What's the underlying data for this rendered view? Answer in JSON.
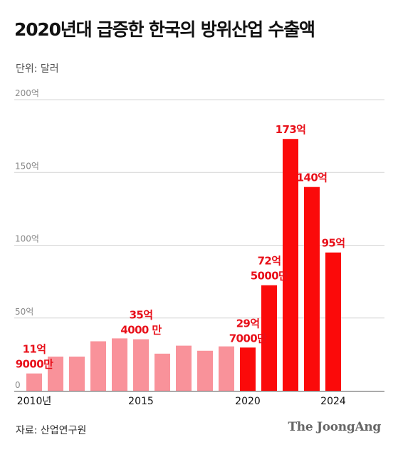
{
  "header": {
    "title": "2020년대 급증한 한국의 방위산업 수출액",
    "unit": "단위: 달러"
  },
  "footer": {
    "source": "자료: 산업연구원",
    "brand": "The JoongAng"
  },
  "colors": {
    "before_2020": "#f9929a",
    "from_2020": "#fb0a0a",
    "label": "#e8101a"
  },
  "chart_data": {
    "type": "bar",
    "title": "2020년대 급증한 한국의 방위산업 수출액",
    "ylabel": "단위: 달러",
    "ylim": [
      0,
      200
    ],
    "grid": true,
    "y_ticks": [
      {
        "value": 0,
        "label": "0"
      },
      {
        "value": 50,
        "label": "50억"
      },
      {
        "value": 100,
        "label": "100억"
      },
      {
        "value": 150,
        "label": "150억"
      },
      {
        "value": 200,
        "label": "200억"
      }
    ],
    "categories": [
      "2010",
      "2011",
      "2012",
      "2013",
      "2014",
      "2015",
      "2016",
      "2017",
      "2018",
      "2019",
      "2020",
      "2021",
      "2022",
      "2023",
      "2024"
    ],
    "x_tick_labels": [
      {
        "category": "2010",
        "label": "2010년"
      },
      {
        "category": "2015",
        "label": "2015"
      },
      {
        "category": "2020",
        "label": "2020"
      },
      {
        "category": "2024",
        "label": "2024"
      }
    ],
    "values": [
      11.9,
      23.5,
      23.5,
      34,
      36,
      35.4,
      25.5,
      31,
      27.5,
      30.5,
      29.7,
      72.5,
      173,
      140,
      95
    ],
    "data_labels": [
      {
        "category": "2010",
        "lines": [
          "11억",
          "9000만"
        ]
      },
      {
        "category": "2015",
        "lines": [
          "35억",
          "4000 만"
        ]
      },
      {
        "category": "2020",
        "lines": [
          "29억",
          "7000만"
        ]
      },
      {
        "category": "2021",
        "lines": [
          "72억",
          "5000만"
        ]
      },
      {
        "category": "2022",
        "lines": [
          "173억"
        ]
      },
      {
        "category": "2023",
        "lines": [
          "140억"
        ]
      },
      {
        "category": "2024",
        "lines": [
          "95억"
        ]
      }
    ]
  }
}
